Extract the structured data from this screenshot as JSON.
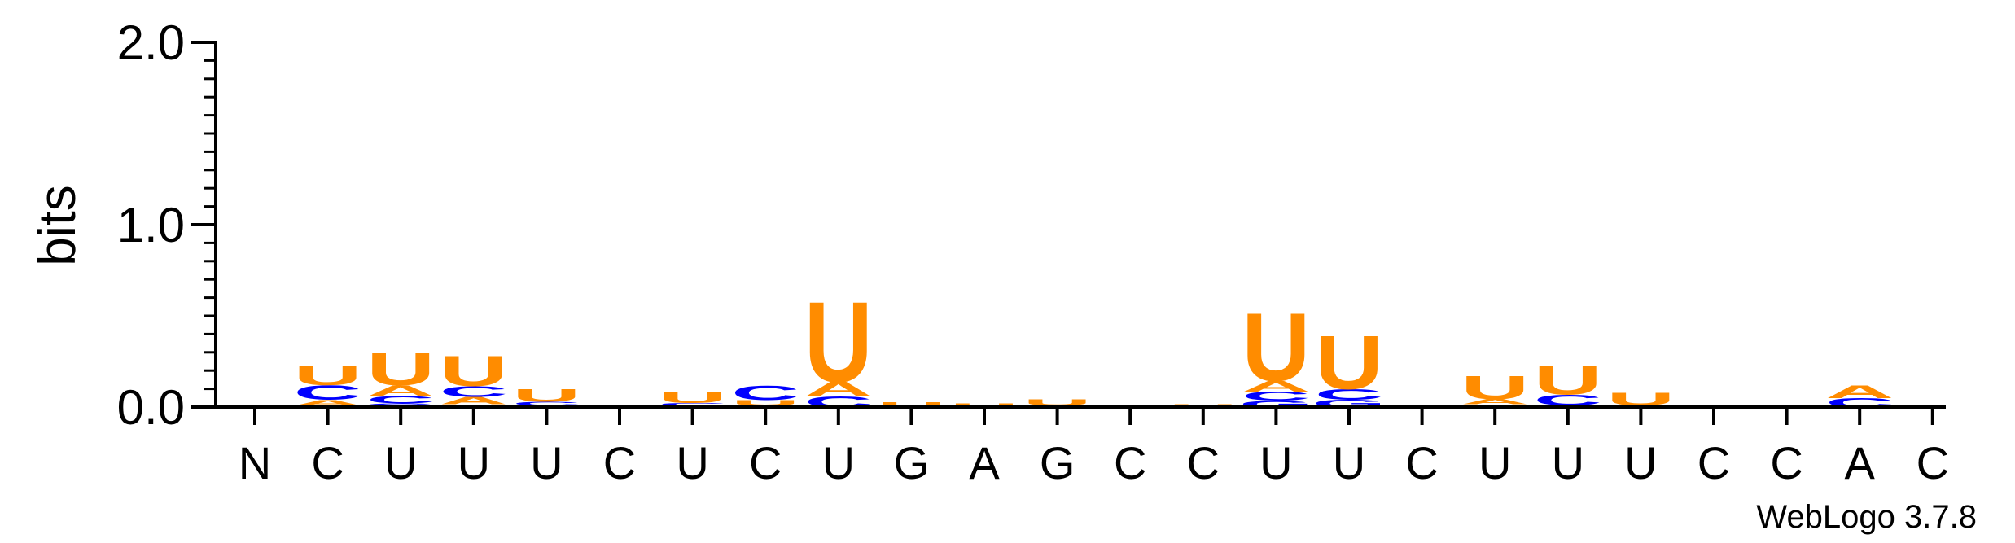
{
  "chart_data": {
    "type": "sequence-logo",
    "ylabel": "bits",
    "ylim": [
      0,
      2.0
    ],
    "yticks": [
      {
        "value": 0,
        "label": "0.0"
      },
      {
        "value": 1,
        "label": "1.0"
      },
      {
        "value": 2,
        "label": "2.0"
      }
    ],
    "credit": "WebLogo 3.7.8",
    "colors": {
      "U": "#FF8C00",
      "A": "#FF8C00",
      "C": "#0000FF",
      "G": "#0000FF"
    },
    "positions": [
      {
        "label": "N",
        "stack": [
          {
            "letter": "A",
            "bits": 0.005
          },
          {
            "letter": "U",
            "bits": 0.005
          }
        ]
      },
      {
        "label": "C",
        "stack": [
          {
            "letter": "G",
            "bits": 0.01
          },
          {
            "letter": "A",
            "bits": 0.03
          },
          {
            "letter": "C",
            "bits": 0.08
          },
          {
            "letter": "U",
            "bits": 0.11
          }
        ]
      },
      {
        "label": "U",
        "stack": [
          {
            "letter": "G",
            "bits": 0.02
          },
          {
            "letter": "C",
            "bits": 0.04
          },
          {
            "letter": "A",
            "bits": 0.06
          },
          {
            "letter": "U",
            "bits": 0.18
          }
        ]
      },
      {
        "label": "U",
        "stack": [
          {
            "letter": "G",
            "bits": 0.015
          },
          {
            "letter": "A",
            "bits": 0.04
          },
          {
            "letter": "C",
            "bits": 0.06
          },
          {
            "letter": "U",
            "bits": 0.17
          }
        ]
      },
      {
        "label": "U",
        "stack": [
          {
            "letter": "A",
            "bits": 0.01
          },
          {
            "letter": "C",
            "bits": 0.02
          },
          {
            "letter": "U",
            "bits": 0.07
          }
        ]
      },
      {
        "label": "C",
        "stack": [
          {
            "letter": "U",
            "bits": 0.008
          }
        ]
      },
      {
        "label": "U",
        "stack": [
          {
            "letter": "A",
            "bits": 0.008
          },
          {
            "letter": "C",
            "bits": 0.015
          },
          {
            "letter": "U",
            "bits": 0.06
          }
        ]
      },
      {
        "label": "C",
        "stack": [
          {
            "letter": "A",
            "bits": 0.008
          },
          {
            "letter": "U",
            "bits": 0.03
          },
          {
            "letter": "C",
            "bits": 0.08
          }
        ]
      },
      {
        "label": "U",
        "stack": [
          {
            "letter": "C",
            "bits": 0.06
          },
          {
            "letter": "A",
            "bits": 0.08
          },
          {
            "letter": "U",
            "bits": 0.45
          }
        ]
      },
      {
        "label": "G",
        "stack": [
          {
            "letter": "U",
            "bits": 0.025
          }
        ]
      },
      {
        "label": "A",
        "stack": [
          {
            "letter": "U",
            "bits": 0.02
          }
        ]
      },
      {
        "label": "G",
        "stack": [
          {
            "letter": "C",
            "bits": 0.01
          },
          {
            "letter": "U",
            "bits": 0.035
          }
        ]
      },
      {
        "label": "C",
        "stack": []
      },
      {
        "label": "C",
        "stack": [
          {
            "letter": "C",
            "bits": 0.005
          },
          {
            "letter": "U",
            "bits": 0.012
          }
        ]
      },
      {
        "label": "U",
        "stack": [
          {
            "letter": "G",
            "bits": 0.035
          },
          {
            "letter": "C",
            "bits": 0.05
          },
          {
            "letter": "A",
            "bits": 0.06
          },
          {
            "letter": "U",
            "bits": 0.38
          }
        ]
      },
      {
        "label": "U",
        "stack": [
          {
            "letter": "G",
            "bits": 0.04
          },
          {
            "letter": "C",
            "bits": 0.06
          },
          {
            "letter": "U",
            "bits": 0.3
          }
        ]
      },
      {
        "label": "C",
        "stack": []
      },
      {
        "label": "U",
        "stack": [
          {
            "letter": "C",
            "bits": 0.015
          },
          {
            "letter": "A",
            "bits": 0.03
          },
          {
            "letter": "U",
            "bits": 0.13
          }
        ]
      },
      {
        "label": "U",
        "stack": [
          {
            "letter": "A",
            "bits": 0.01
          },
          {
            "letter": "C",
            "bits": 0.06
          },
          {
            "letter": "U",
            "bits": 0.16
          }
        ]
      },
      {
        "label": "U",
        "stack": [
          {
            "letter": "C",
            "bits": 0.01
          },
          {
            "letter": "U",
            "bits": 0.07
          }
        ]
      },
      {
        "label": "C",
        "stack": []
      },
      {
        "label": "C",
        "stack": [
          {
            "letter": "U",
            "bits": 0.005
          }
        ]
      },
      {
        "label": "A",
        "stack": [
          {
            "letter": "C",
            "bits": 0.05
          },
          {
            "letter": "A",
            "bits": 0.07
          }
        ]
      },
      {
        "label": "C",
        "stack": []
      }
    ]
  }
}
